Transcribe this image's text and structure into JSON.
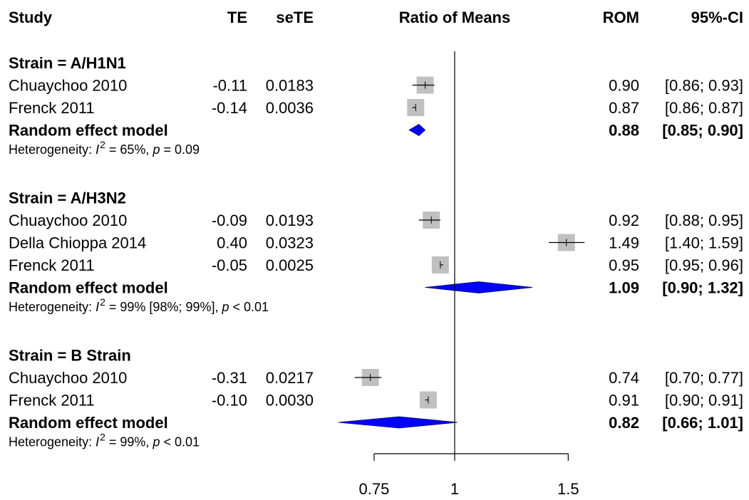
{
  "chart_data": {
    "type": "forest",
    "headers": {
      "study": "Study",
      "te": "TE",
      "sete": "seTE",
      "effect": "Ratio of Means",
      "rom": "ROM",
      "ci": "95%-CI"
    },
    "x_axis": {
      "scale": "log",
      "ticks": [
        0.75,
        1,
        1.5
      ],
      "tick_labels": [
        "0.75",
        "1",
        "1.5"
      ],
      "reference_line": 1
    },
    "groups": [
      {
        "title": "Strain = A/H1N1",
        "studies": [
          {
            "name": "Chuaychoo 2010",
            "te": "-0.11",
            "sete": "0.0183",
            "rom": 0.9,
            "lower": 0.86,
            "upper": 0.93,
            "rom_text": "0.90",
            "ci_text": "[0.86; 0.93]",
            "weight": 1.0
          },
          {
            "name": "Frenck 2011",
            "te": "-0.14",
            "sete": "0.0036",
            "rom": 0.87,
            "lower": 0.86,
            "upper": 0.87,
            "rom_text": "0.87",
            "ci_text": "[0.86; 0.87]",
            "weight": 1.0
          }
        ],
        "pooled": {
          "label": "Random effect model",
          "rom": 0.88,
          "lower": 0.85,
          "upper": 0.9,
          "rom_text": "0.88",
          "ci_text": "[0.85; 0.90]"
        },
        "heterogeneity": {
          "prefix": "Heterogeneity: ",
          "i_symbol": "I",
          "sup": "2",
          "value": " = 65%, ",
          "p_symbol": "p",
          "p_text": " = 0.09"
        }
      },
      {
        "title": "Strain = A/H3N2",
        "studies": [
          {
            "name": "Chuaychoo 2010",
            "te": "-0.09",
            "sete": "0.0193",
            "rom": 0.92,
            "lower": 0.88,
            "upper": 0.95,
            "rom_text": "0.92",
            "ci_text": "[0.88; 0.95]",
            "weight": 1.0
          },
          {
            "name": "Della Chioppa 2014",
            "te": "0.40",
            "sete": "0.0323",
            "rom": 1.49,
            "lower": 1.4,
            "upper": 1.59,
            "rom_text": "1.49",
            "ci_text": "[1.40; 1.59]",
            "weight": 1.0
          },
          {
            "name": "Frenck 2011",
            "te": "-0.05",
            "sete": "0.0025",
            "rom": 0.95,
            "lower": 0.95,
            "upper": 0.96,
            "rom_text": "0.95",
            "ci_text": "[0.95; 0.96]",
            "weight": 1.0
          }
        ],
        "pooled": {
          "label": "Random effect model",
          "rom": 1.09,
          "lower": 0.9,
          "upper": 1.32,
          "rom_text": "1.09",
          "ci_text": "[0.90; 1.32]"
        },
        "heterogeneity": {
          "prefix": "Heterogeneity: ",
          "i_symbol": "I",
          "sup": "2",
          "value": " = 99% [98%; 99%], ",
          "p_symbol": "p",
          "p_text": " < 0.01"
        }
      },
      {
        "title": "Strain = B Strain",
        "studies": [
          {
            "name": "Chuaychoo 2010",
            "te": "-0.31",
            "sete": "0.0217",
            "rom": 0.74,
            "lower": 0.7,
            "upper": 0.77,
            "rom_text": "0.74",
            "ci_text": "[0.70; 0.77]",
            "weight": 1.0
          },
          {
            "name": "Frenck 2011",
            "te": "-0.10",
            "sete": "0.0030",
            "rom": 0.91,
            "lower": 0.9,
            "upper": 0.91,
            "rom_text": "0.91",
            "ci_text": "[0.90; 0.91]",
            "weight": 1.0
          }
        ],
        "pooled": {
          "label": "Random effect model",
          "rom": 0.82,
          "lower": 0.66,
          "upper": 1.01,
          "rom_text": "0.82",
          "ci_text": "[0.66; 1.01]"
        },
        "heterogeneity": {
          "prefix": "Heterogeneity: ",
          "i_symbol": "I",
          "sup": "2",
          "value": " = 99%, ",
          "p_symbol": "p",
          "p_text": " < 0.01"
        }
      }
    ],
    "colors": {
      "square": "#c0c0c0",
      "diamond": "#0000ff",
      "line": "#000000"
    }
  }
}
